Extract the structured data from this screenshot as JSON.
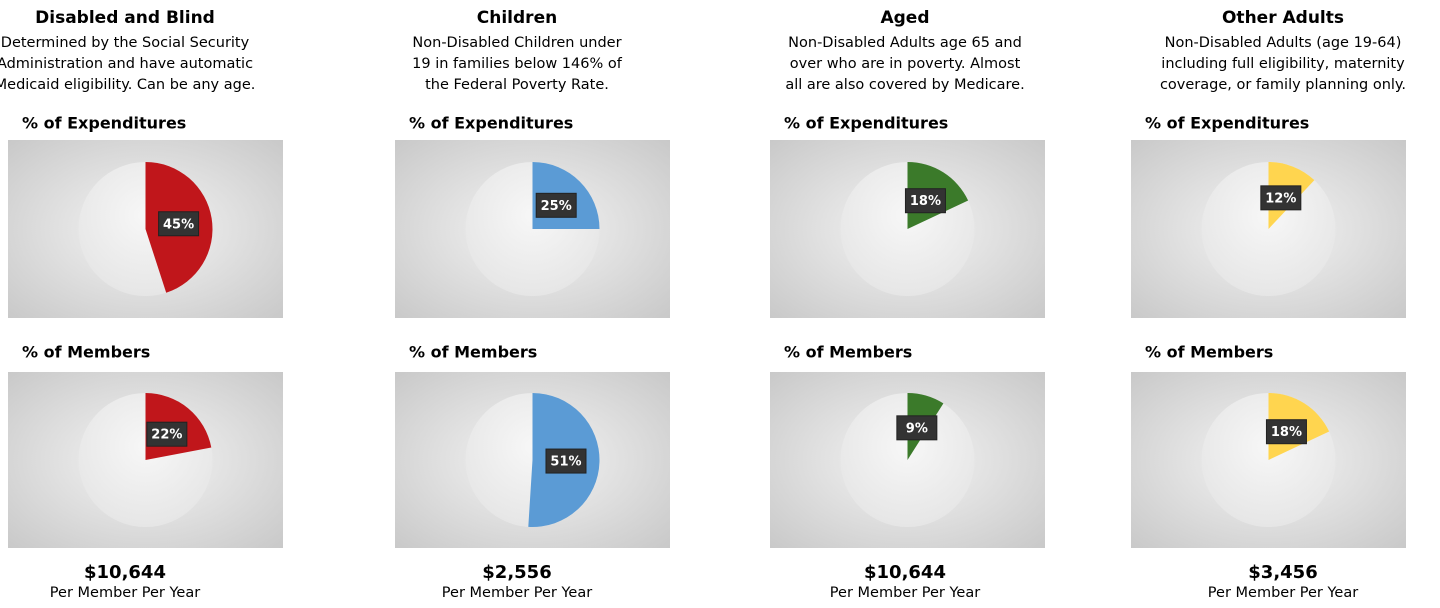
{
  "groups": [
    {
      "title": "Disabled and Blind",
      "description": [
        "Determined by the Social Security",
        "Administration and have automatic",
        "Medicaid eligibility. Can be any age."
      ],
      "charts": [
        {
          "type": "pie",
          "title": "% of Expenditures",
          "values": [
            45
          ],
          "value_labels": [
            "45%"
          ],
          "color": "#c0161b"
        },
        {
          "type": "pie",
          "title": "% of Members",
          "values": [
            22
          ],
          "value_labels": [
            "22%"
          ],
          "color": "#c0161b"
        }
      ],
      "cost": "$10,644",
      "cost_note": "Per Member Per Year"
    },
    {
      "title": "Children",
      "description": [
        "Non-Disabled Children under",
        "19 in families below 146% of",
        "the Federal Poverty Rate."
      ],
      "charts": [
        {
          "type": "pie",
          "title": "% of Expenditures",
          "values": [
            25
          ],
          "value_labels": [
            "25%"
          ],
          "color": "#5b9bd5"
        },
        {
          "type": "pie",
          "title": "% of Members",
          "values": [
            51
          ],
          "value_labels": [
            "51%"
          ],
          "color": "#5b9bd5"
        }
      ],
      "cost": "$2,556",
      "cost_note": "Per Member Per Year"
    },
    {
      "title": "Aged",
      "description": [
        "Non-Disabled Adults age 65 and",
        "over who are in poverty. Almost",
        "all are also covered by Medicare."
      ],
      "charts": [
        {
          "type": "pie",
          "title": "% of Expenditures",
          "values": [
            18
          ],
          "value_labels": [
            "18%"
          ],
          "color": "#3b7a2a"
        },
        {
          "type": "pie",
          "title": "% of Members",
          "values": [
            9
          ],
          "value_labels": [
            "9%"
          ],
          "color": "#3b7a2a"
        }
      ],
      "cost": "$10,644",
      "cost_note": "Per Member Per Year"
    },
    {
      "title": "Other Adults",
      "description": [
        "Non-Disabled Adults (age 19-64)",
        "including full eligibility, maternity",
        "coverage, or family planning only."
      ],
      "charts": [
        {
          "type": "pie",
          "title": "% of Expenditures",
          "values": [
            12
          ],
          "value_labels": [
            "12%"
          ],
          "color": "#ffd54f"
        },
        {
          "type": "pie",
          "title": "% of Members",
          "values": [
            18
          ],
          "value_labels": [
            "18%"
          ],
          "color": "#ffd54f"
        }
      ],
      "cost": "$3,456",
      "cost_note": "Per Member Per Year"
    }
  ]
}
